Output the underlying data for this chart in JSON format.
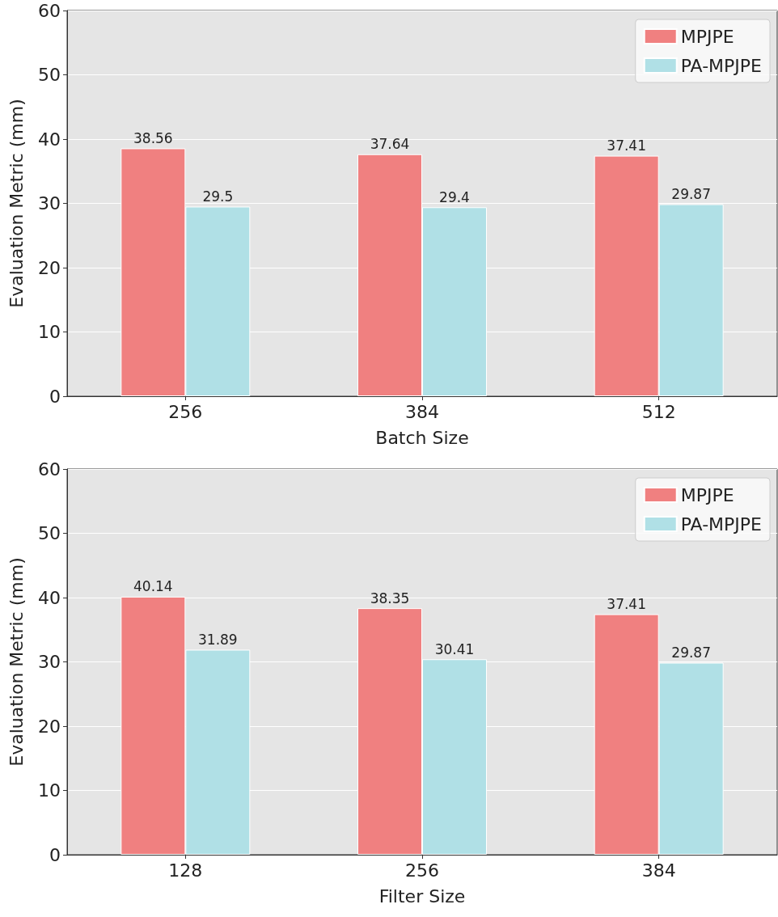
{
  "chart_data": [
    {
      "type": "bar",
      "xlabel": "Batch Size",
      "ylabel": "Evaluation Metric (mm)",
      "categories": [
        "256",
        "384",
        "512"
      ],
      "series": [
        {
          "name": "MPJPE",
          "color": "#f08080",
          "values": [
            38.56,
            37.64,
            37.41
          ]
        },
        {
          "name": "PA-MPJPE",
          "color": "#b0e0e6",
          "values": [
            29.5,
            29.4,
            29.87
          ]
        }
      ],
      "ylim": [
        0,
        60
      ],
      "yticks": [
        0,
        10,
        20,
        30,
        40,
        50,
        60
      ],
      "grid": "y",
      "legend": "top right",
      "data_labels": true
    },
    {
      "type": "bar",
      "xlabel": "Filter Size",
      "ylabel": "Evaluation Metric (mm)",
      "categories": [
        "128",
        "256",
        "384"
      ],
      "series": [
        {
          "name": "MPJPE",
          "color": "#f08080",
          "values": [
            40.14,
            38.35,
            37.41
          ]
        },
        {
          "name": "PA-MPJPE",
          "color": "#b0e0e6",
          "values": [
            31.89,
            30.41,
            29.87
          ]
        }
      ],
      "ylim": [
        0,
        60
      ],
      "yticks": [
        0,
        10,
        20,
        30,
        40,
        50,
        60
      ],
      "grid": "y",
      "legend": "top right",
      "data_labels": true
    }
  ]
}
